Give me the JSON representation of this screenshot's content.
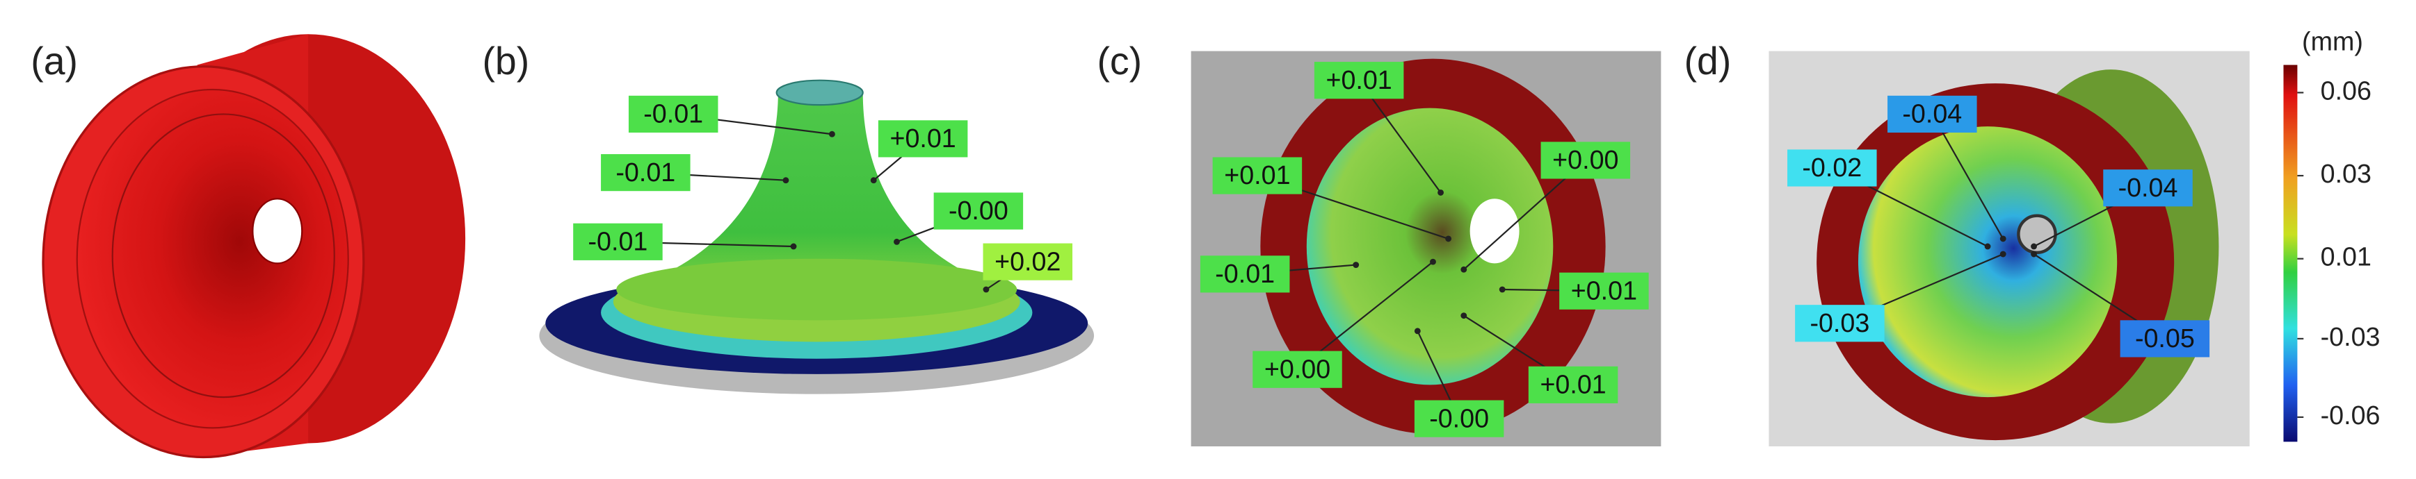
{
  "panels": [
    {
      "label": "(a)"
    },
    {
      "label": "(b)",
      "annotations": [
        "-0.01",
        "-0.01",
        "-0.01",
        "+0.01",
        "-0.00",
        "+0.02"
      ]
    },
    {
      "label": "(c)",
      "annotations": [
        "+0.01",
        "+0.01",
        "-0.01",
        "+0.00",
        "-0.00",
        "+0.01",
        "+0.01",
        "+0.00"
      ]
    },
    {
      "label": "(d)",
      "annotations": [
        "-0.04",
        "-0.02",
        "-0.04",
        "-0.03",
        "-0.05"
      ]
    }
  ],
  "colorbar": {
    "unit": "(mm)",
    "ticks": [
      "0.06",
      "0.03",
      "0.01",
      "-0.03",
      "-0.06"
    ]
  }
}
